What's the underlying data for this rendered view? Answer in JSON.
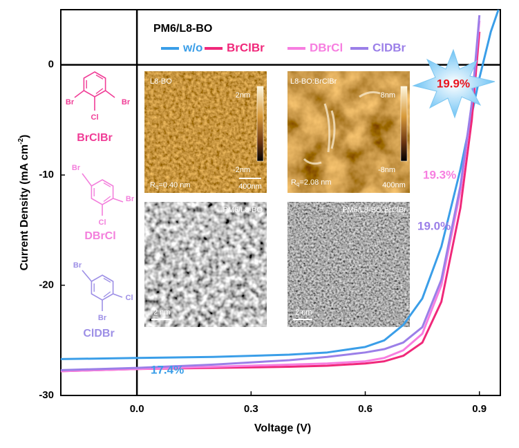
{
  "chart_data": {
    "type": "line",
    "legend_title": "PM6/L8-BO",
    "x_label": "Voltage (V)",
    "y_label": {
      "text": "Current Density (mA cm",
      "superscript": "-2",
      "end": ")"
    },
    "x": [
      -0.2,
      0,
      0.2,
      0.4,
      0.5,
      0.6,
      0.65,
      0.7,
      0.75,
      0.8,
      0.85,
      0.88,
      0.9,
      0.93,
      0.95
    ],
    "series": [
      {
        "name": "w/o",
        "color": "#3a9ee8",
        "values": [
          -26.7,
          -26.6,
          -26.5,
          -26.3,
          -26.1,
          -25.6,
          -25.0,
          -23.6,
          -21.2,
          -16.5,
          -9.5,
          -4.5,
          -1.2,
          3.0,
          5.0
        ]
      },
      {
        "name": "BrClBr",
        "color": "#f0287a",
        "values": [
          -27.8,
          -27.6,
          -27.5,
          -27.4,
          -27.3,
          -27.1,
          -26.9,
          -26.4,
          -25.2,
          -21.5,
          -13.0,
          -5.0,
          3.0,
          null,
          null
        ]
      },
      {
        "name": "DBrCl",
        "color": "#f77ee0",
        "values": [
          -27.8,
          -27.6,
          -27.4,
          -27.2,
          -27.1,
          -26.9,
          -26.6,
          -25.9,
          -24.4,
          -20.0,
          -11.5,
          -3.5,
          4.0,
          null,
          null
        ]
      },
      {
        "name": "ClDBr",
        "color": "#9b7fe8",
        "values": [
          -27.7,
          -27.5,
          -27.2,
          -26.8,
          -26.5,
          -26.1,
          -25.8,
          -25.2,
          -23.8,
          -19.5,
          -11.0,
          -3.5,
          4.5,
          null,
          null
        ]
      }
    ],
    "xlim": [
      -0.2,
      0.955
    ],
    "ylim": [
      -30,
      5
    ],
    "xticks": [
      {
        "value": 0,
        "label": "0.0"
      },
      0.3,
      0.6,
      0.9
    ],
    "yticks": [
      0,
      -10,
      -20,
      -30
    ],
    "annotations": [
      {
        "text": "17.4%",
        "color": "#3a9ee8"
      },
      {
        "text": "19.9%",
        "color": "#e8141e"
      },
      {
        "text": "19.3%",
        "color": "#f77ee0"
      },
      {
        "text": "19.0%",
        "color": "#9b7fe8"
      }
    ],
    "molecules": [
      {
        "name": "BrClBr",
        "atoms": [
          "Br",
          "Br",
          "Cl"
        ]
      },
      {
        "name": "DBrCl",
        "atoms": [
          "Br",
          "Br",
          "Cl"
        ]
      },
      {
        "name": "ClDBr",
        "atoms": [
          "Br",
          "Cl",
          "Br"
        ]
      }
    ],
    "insets": [
      {
        "title": "L8-BO",
        "scale_top": "2nm",
        "scale_bottom": "-2nm",
        "roughness": {
          "symbol": "R",
          "subscript": "q",
          "text": "=0.40 nm"
        },
        "scale_bar": "400nm"
      },
      {
        "title": "L8-BO:BrClBr",
        "scale_top": "8nm",
        "scale_bottom": "-8nm",
        "roughness": {
          "symbol": "R",
          "subscript": "q",
          "text": "=2.08 nm"
        },
        "scale_bar": "400nm"
      },
      {
        "title": "PM6/L8-BO",
        "scale_bar": "2 nm"
      },
      {
        "title": "PM6/L8-BO:BrClBr",
        "scale_bar": "2 nm"
      }
    ]
  }
}
